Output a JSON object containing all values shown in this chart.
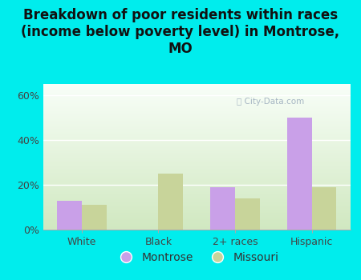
{
  "title": "Breakdown of poor residents within races\n(income below poverty level) in Montrose,\nMO",
  "categories": [
    "White",
    "Black",
    "2+ races",
    "Hispanic"
  ],
  "montrose_values": [
    13,
    0,
    19,
    50
  ],
  "missouri_values": [
    11,
    25,
    14,
    19
  ],
  "montrose_color": "#c9a0e8",
  "missouri_color": "#c8d49a",
  "background_color": "#00eded",
  "grad_bottom": "#d0e8c0",
  "grad_top": "#f8fef8",
  "yticks": [
    0,
    20,
    40,
    60
  ],
  "ytick_labels": [
    "0%",
    "20%",
    "40%",
    "60%"
  ],
  "ylim": [
    0,
    65
  ],
  "bar_width": 0.32,
  "legend_labels": [
    "Montrose",
    "Missouri"
  ],
  "title_fontsize": 12,
  "tick_fontsize": 9,
  "legend_fontsize": 10,
  "watermark": "City-Data.com"
}
